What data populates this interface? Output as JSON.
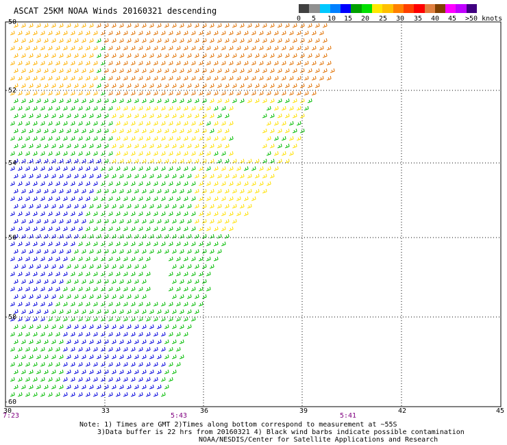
{
  "title": "ASCAT 25KM NOAA Winds 20160321 descending",
  "scale": {
    "labels": [
      "0",
      "5",
      "10",
      "15",
      "20",
      "25",
      "30",
      "35",
      "40",
      "45",
      ">50 knots"
    ],
    "colors": [
      "#404040",
      "#909090",
      "#00c8ff",
      "#0080ff",
      "#0000ff",
      "#00a000",
      "#00e000",
      "#ffe800",
      "#ffc000",
      "#ff8000",
      "#ff4000",
      "#ff0000",
      "#e08040",
      "#804000",
      "#ff00ff",
      "#c000ff",
      "#400080"
    ]
  },
  "map": {
    "lat_labels": [
      "-50",
      "-52",
      "-54",
      "-56",
      "-58",
      "-60"
    ],
    "lon_labels": [
      "30",
      "33",
      "36",
      "39",
      "42",
      "45"
    ],
    "time_labels": [
      "7:23",
      "5:43",
      "5:41"
    ],
    "barb_colors": {
      "blue": "#0000dd",
      "green": "#00bb00",
      "yellow": "#ffe000",
      "gold": "#ffb000",
      "orange": "#e07000"
    }
  },
  "notes": {
    "line1": "Note: 1) Times are GMT 2)Times along bottom correspond to measurement at ~55S",
    "line2": "3)Data buffer is 22 hrs from 20160321 4) Black wind barbs indicate possible contamination",
    "line3": "NOAA/NESDIS/Center for Satellite Applications and Research"
  }
}
